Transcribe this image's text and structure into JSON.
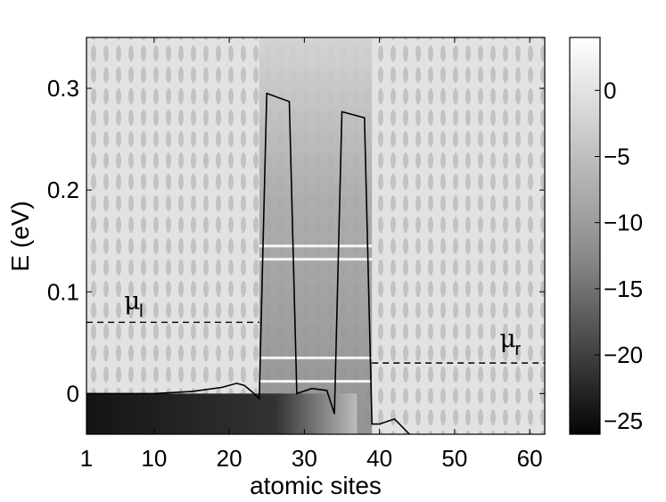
{
  "chart_data": {
    "type": "heatmap",
    "title": "",
    "xlabel": "atomic sites",
    "ylabel": "E (eV)",
    "xlim": [
      1,
      62
    ],
    "ylim": [
      -0.04,
      0.35
    ],
    "xticks": [
      1,
      10,
      20,
      30,
      40,
      50,
      60
    ],
    "yticks": [
      0,
      0.1,
      0.2,
      0.3
    ],
    "colorbar": {
      "range": [
        -26,
        4
      ],
      "ticks": [
        0,
        -5,
        -10,
        -15,
        -20,
        -25
      ],
      "colormap": "gray"
    },
    "band_profile": {
      "x": [
        1,
        10,
        15,
        19,
        21,
        22,
        23,
        24,
        25,
        28,
        29,
        31,
        33,
        34,
        35,
        38,
        39,
        40,
        42,
        44,
        47,
        62
      ],
      "y": [
        0.0,
        0.0,
        0.002,
        0.006,
        0.01,
        0.008,
        0.002,
        -0.005,
        0.295,
        0.287,
        0.0,
        0.005,
        0.003,
        -0.02,
        0.277,
        0.271,
        -0.03,
        -0.03,
        -0.025,
        -0.04,
        -0.045,
        -0.045
      ]
    },
    "chemical_potentials": [
      {
        "label": "μ",
        "sub": "l",
        "y": 0.07,
        "x_range": [
          1,
          24
        ]
      },
      {
        "label": "μ",
        "sub": "r",
        "y": 0.03,
        "x_range": [
          39,
          62
        ]
      }
    ],
    "resonance_levels": [
      0.145,
      0.132,
      0.035,
      0.012
    ]
  }
}
